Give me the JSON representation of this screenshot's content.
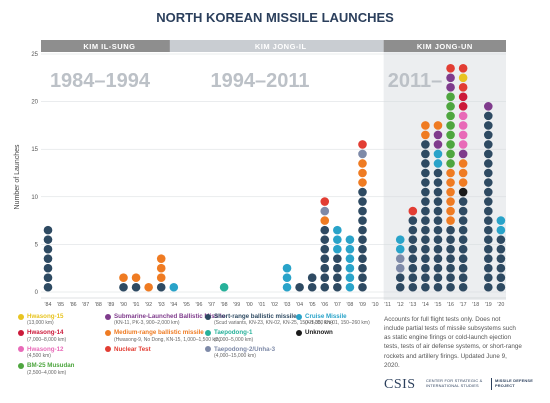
{
  "chart_data": {
    "type": "stacked-dot",
    "title": "NORTH KOREAN MISSILE LAUNCHES",
    "ylabel": "Number of Launches",
    "ylim": [
      0,
      25
    ],
    "yticks": [
      0,
      5,
      10,
      15,
      20,
      25
    ],
    "x": [
      "'84",
      "'85",
      "'86",
      "'87",
      "'88",
      "'89",
      "'90",
      "'91",
      "'92",
      "'93",
      "'94",
      "'95",
      "'96",
      "'97",
      "'98",
      "'99",
      "'00",
      "'01",
      "'02",
      "'03",
      "'04",
      "'05",
      "'06",
      "'07",
      "'08",
      "'09",
      "'10",
      "'11",
      "'12",
      "'13",
      "'14",
      "'15",
      "'16",
      "'17",
      "'18",
      "'19",
      "'20"
    ],
    "eras": [
      {
        "label": "KIM IL-SUNG",
        "range_text": "1984–1994",
        "from": "'84",
        "to": "'94"
      },
      {
        "label": "KIM JONG-IL",
        "range_text": "1994–2011",
        "from": "'94",
        "to": "'11"
      },
      {
        "label": "KIM JONG-UN",
        "range_text": "2011–",
        "from": "'11",
        "to": "'20"
      }
    ],
    "series": [
      {
        "key": "hwasong15",
        "name": "Hwasong-15",
        "range": "(13,000 km)",
        "color": "#e8c421"
      },
      {
        "key": "hwasong14",
        "name": "Hwasong-14",
        "range": "(7,000–8,000 km)",
        "color": "#cc1a3a"
      },
      {
        "key": "hwasong12",
        "name": "Hwasong-12",
        "range": "(4,500 km)",
        "color": "#e86ab8"
      },
      {
        "key": "bm25",
        "name": "BM-25 Musudan",
        "range": "(2,500–4,000 km)",
        "color": "#4ea63f"
      },
      {
        "key": "slbm",
        "name": "Submarine-Launched Ballistic Missile",
        "range": "(KN-11, PK-3, 900–2,000 km)",
        "color": "#7f3b8c"
      },
      {
        "key": "mrbm",
        "name": "Medium-range ballistic missile",
        "range": "(Hwasong-9, No Dong, KN-15, 1,000–1,500 km)",
        "color": "#ef7b22"
      },
      {
        "key": "nuclear",
        "name": "Nuclear Test",
        "range": "",
        "color": "#e23d33"
      },
      {
        "key": "srbm",
        "name": "Short-range ballistic missile",
        "range": "(Scud variants, KN-23, KN-02, KN-25, 150–1,000 km)",
        "color": "#2e4a62"
      },
      {
        "key": "taepodong1",
        "name": "Taepodong-1",
        "range": "(2,000–5,000 km)",
        "color": "#27b19a"
      },
      {
        "key": "taepodong2",
        "name": "Taepodong-2/Unha-3",
        "range": "(4,000–15,000 km)",
        "color": "#7e8aa8"
      },
      {
        "key": "cruise",
        "name": "Cruise Missile",
        "range": "(KH-35, KN-01, 150–260 km)",
        "color": "#29a3c9"
      },
      {
        "key": "unknown",
        "name": "Unknown",
        "range": "",
        "color": "#1a1a1a"
      }
    ],
    "columns": [
      {
        "year": "'84",
        "stack": [
          "srbm",
          "srbm",
          "srbm",
          "srbm",
          "srbm",
          "srbm",
          "srbm"
        ]
      },
      {
        "year": "'90",
        "stack": [
          "srbm",
          "mrbm"
        ]
      },
      {
        "year": "'91",
        "stack": [
          "srbm",
          "mrbm"
        ]
      },
      {
        "year": "'92",
        "stack": [
          "mrbm"
        ]
      },
      {
        "year": "'93",
        "stack": [
          "srbm",
          "mrbm",
          "mrbm",
          "mrbm"
        ]
      },
      {
        "year": "'94",
        "stack": [
          "cruise"
        ]
      },
      {
        "year": "'98",
        "stack": [
          "taepodong1"
        ]
      },
      {
        "year": "'03",
        "stack": [
          "cruise",
          "cruise",
          "cruise"
        ]
      },
      {
        "year": "'04",
        "stack": [
          "srbm"
        ]
      },
      {
        "year": "'05",
        "stack": [
          "srbm",
          "srbm"
        ]
      },
      {
        "year": "'06",
        "stack": [
          "srbm",
          "srbm",
          "srbm",
          "srbm",
          "srbm",
          "srbm",
          "srbm",
          "mrbm",
          "taepodong2",
          "nuclear"
        ]
      },
      {
        "year": "'07",
        "stack": [
          "srbm",
          "srbm",
          "srbm",
          "srbm",
          "cruise",
          "cruise",
          "cruise"
        ]
      },
      {
        "year": "'08",
        "stack": [
          "cruise",
          "cruise",
          "cruise",
          "cruise",
          "cruise",
          "cruise"
        ]
      },
      {
        "year": "'09",
        "stack": [
          "srbm",
          "srbm",
          "srbm",
          "srbm",
          "srbm",
          "srbm",
          "srbm",
          "srbm",
          "srbm",
          "srbm",
          "srbm",
          "mrbm",
          "mrbm",
          "mrbm",
          "taepodong2",
          "nuclear"
        ]
      },
      {
        "year": "'12",
        "stack": [
          "srbm",
          "srbm",
          "taepodong2",
          "taepodong2",
          "cruise",
          "cruise"
        ]
      },
      {
        "year": "'13",
        "stack": [
          "srbm",
          "srbm",
          "srbm",
          "srbm",
          "srbm",
          "srbm",
          "srbm",
          "srbm",
          "nuclear"
        ]
      },
      {
        "year": "'14",
        "stack": [
          "srbm",
          "srbm",
          "srbm",
          "srbm",
          "srbm",
          "srbm",
          "srbm",
          "srbm",
          "srbm",
          "srbm",
          "srbm",
          "srbm",
          "srbm",
          "srbm",
          "srbm",
          "srbm",
          "mrbm",
          "mrbm"
        ]
      },
      {
        "year": "'15",
        "stack": [
          "srbm",
          "srbm",
          "srbm",
          "srbm",
          "srbm",
          "srbm",
          "srbm",
          "srbm",
          "srbm",
          "srbm",
          "srbm",
          "srbm",
          "srbm",
          "cruise",
          "cruise",
          "slbm",
          "slbm",
          "mrbm"
        ]
      },
      {
        "year": "'16",
        "stack": [
          "srbm",
          "srbm",
          "srbm",
          "srbm",
          "srbm",
          "srbm",
          "srbm",
          "mrbm",
          "mrbm",
          "mrbm",
          "mrbm",
          "mrbm",
          "mrbm",
          "bm25",
          "bm25",
          "bm25",
          "bm25",
          "bm25",
          "bm25",
          "bm25",
          "bm25",
          "slbm",
          "slbm",
          "nuclear"
        ]
      },
      {
        "year": "'17",
        "stack": [
          "srbm",
          "srbm",
          "srbm",
          "srbm",
          "srbm",
          "srbm",
          "srbm",
          "srbm",
          "srbm",
          "srbm",
          "unknown",
          "mrbm",
          "mrbm",
          "mrbm",
          "slbm",
          "hwasong12",
          "hwasong12",
          "hwasong12",
          "hwasong12",
          "hwasong14",
          "hwasong14",
          "nuclear",
          "hwasong15",
          "nuclear"
        ]
      },
      {
        "year": "'19",
        "stack": [
          "srbm",
          "srbm",
          "srbm",
          "srbm",
          "srbm",
          "srbm",
          "srbm",
          "srbm",
          "srbm",
          "srbm",
          "srbm",
          "srbm",
          "srbm",
          "srbm",
          "srbm",
          "srbm",
          "srbm",
          "srbm",
          "srbm",
          "slbm"
        ]
      },
      {
        "year": "'20",
        "stack": [
          "srbm",
          "srbm",
          "srbm",
          "srbm",
          "srbm",
          "srbm",
          "cruise",
          "cruise"
        ]
      }
    ],
    "note": "Accounts for full flight tests only. Does not include partial tests of missile subsystems such as static engine firings or cold-launch ejection tests, tests of air defense systems, or short-range rockets and artillery firings. Updated June 9, 2020.",
    "source": {
      "logo": "CSIS",
      "center": [
        "CENTER FOR STRATEGIC &",
        "INTERNATIONAL STUDIES"
      ],
      "project": [
        "MISSILE DEFENSE",
        "PROJECT"
      ]
    }
  }
}
